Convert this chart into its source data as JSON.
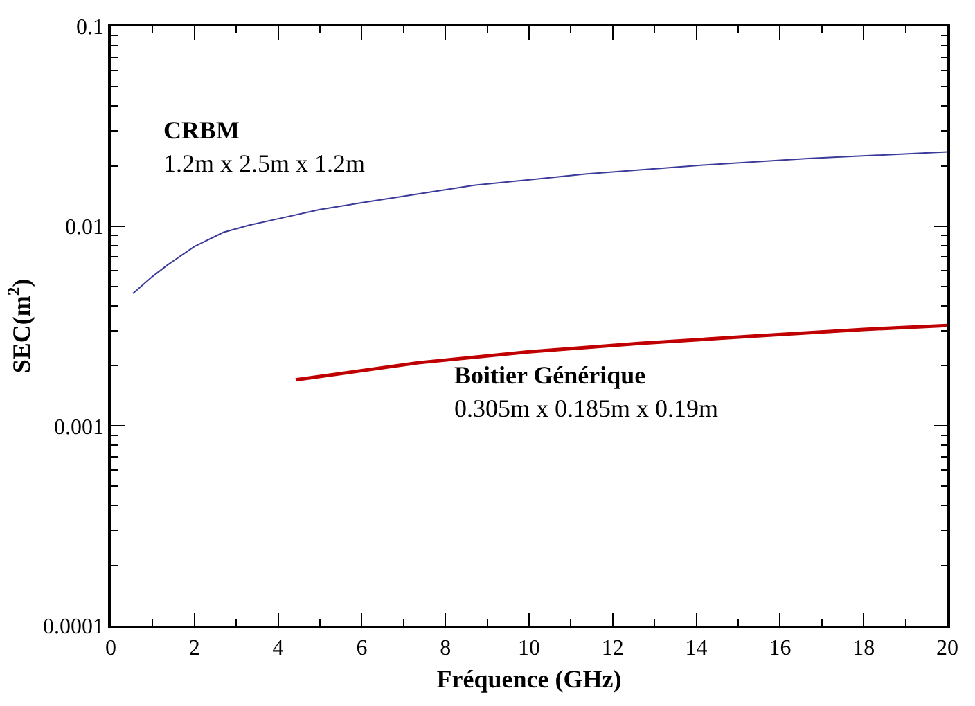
{
  "chart_data": {
    "type": "line",
    "xlabel": "Fréquence (GHz)",
    "ylabel": "SEC(m$^{2}$)",
    "log": "y",
    "legend": false,
    "marker": "none",
    "line_style": "solid",
    "xlim": [
      0,
      20
    ],
    "xticks": [
      0,
      2,
      4,
      6,
      8,
      10,
      12,
      14,
      16,
      18,
      20
    ],
    "ylim": [
      0.0001,
      0.1
    ],
    "yticks": [
      0.0001,
      0.001,
      0.01,
      0.1
    ],
    "series": [
      {
        "color": "#3a3a9a",
        "x": [
          0.53,
          1.0,
          1.36,
          2.0,
          2.69,
          3.3,
          4.02,
          5.0,
          6.02,
          8.68,
          11.34,
          14.0,
          16.67,
          20
        ],
        "values": [
          0.0046,
          0.0056,
          0.0064,
          0.0079,
          0.0093,
          0.0101,
          0.0109,
          0.0121,
          0.0131,
          0.016,
          0.0182,
          0.0201,
          0.0218,
          0.0235
        ]
      },
      {
        "color": "#c00000",
        "x": [
          4.42,
          7.35,
          10.01,
          12.68,
          15.34,
          18.0,
          20
        ],
        "values": [
          0.0017,
          0.00207,
          0.00235,
          0.00259,
          0.00281,
          0.00304,
          0.00318
        ]
      }
    ],
    "annotations": [
      "CRBM",
      "1.2m x 2.5m x 1.2m",
      "Boitier Générique",
      "0.305m x 0.185m x 0.19m"
    ]
  }
}
